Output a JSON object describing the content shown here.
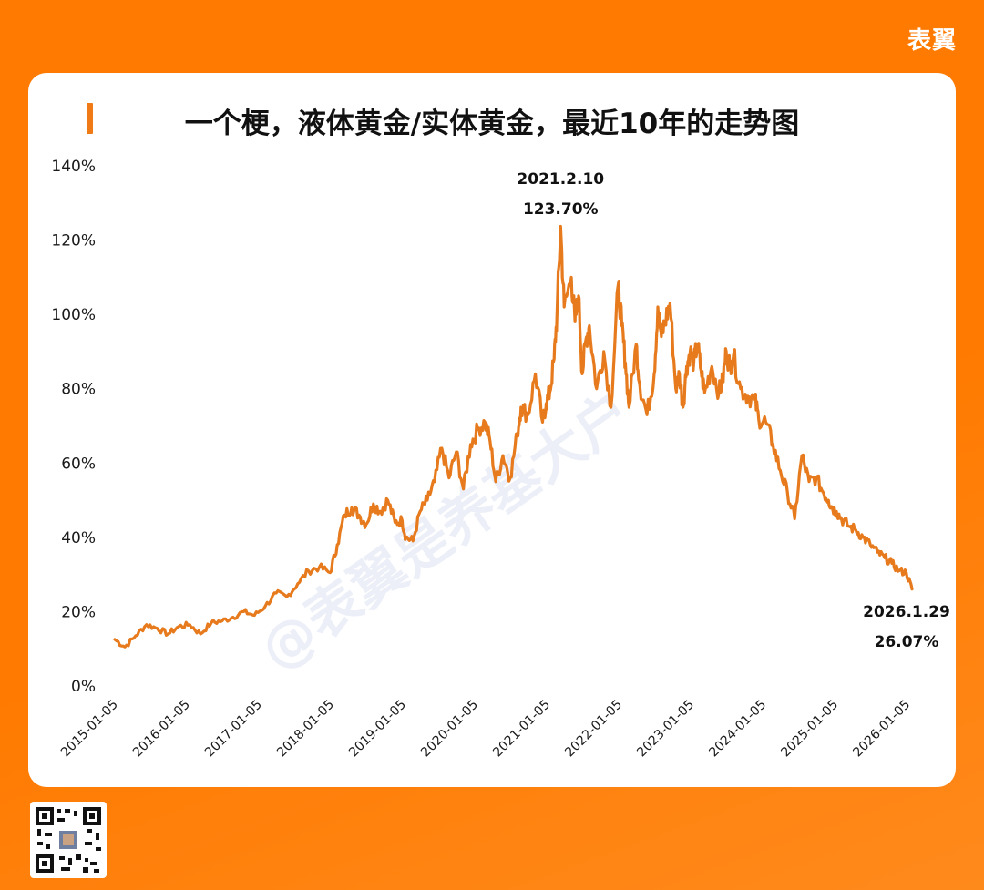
{
  "brand": "表翼",
  "card": {
    "title": "一个梗，液体黄金/实体黄金，最近10年的走势图"
  },
  "watermark": "@表翼是养基大户",
  "colors": {
    "line": "#e67a1c",
    "accent": "#f07a16",
    "background": "#ff7a00"
  },
  "chart_data": {
    "type": "line",
    "title": "一个梗，液体黄金/实体黄金，最近10年的走势图",
    "xlabel": "",
    "ylabel": "",
    "ylim": [
      0,
      140
    ],
    "yticks": [
      "0%",
      "20%",
      "40%",
      "60%",
      "80%",
      "100%",
      "120%",
      "140%"
    ],
    "x_range": [
      2015.01,
      2026.08
    ],
    "xticks": [
      "2015-01-05",
      "2016-01-05",
      "2017-01-05",
      "2018-01-05",
      "2019-01-05",
      "2020-01-05",
      "2021-01-05",
      "2022-01-05",
      "2023-01-05",
      "2024-01-05",
      "2025-01-05",
      "2026-01-05"
    ],
    "annotations": [
      {
        "date": "2021.2.10",
        "value": "123.70%"
      },
      {
        "date": "2026.1.29",
        "value": "26.07%"
      }
    ],
    "series": [
      {
        "name": "液体黄金/实体黄金",
        "x": [
          2015.01,
          2015.15,
          2015.3,
          2015.45,
          2015.6,
          2015.75,
          2015.9,
          2016.05,
          2016.2,
          2016.35,
          2016.5,
          2016.65,
          2016.8,
          2016.95,
          2017.1,
          2017.25,
          2017.4,
          2017.55,
          2017.7,
          2017.85,
          2018.0,
          2018.1,
          2018.2,
          2018.3,
          2018.4,
          2018.5,
          2018.6,
          2018.7,
          2018.8,
          2018.9,
          2019.0,
          2019.05,
          2019.15,
          2019.25,
          2019.35,
          2019.45,
          2019.55,
          2019.65,
          2019.75,
          2019.85,
          2019.95,
          2020.05,
          2020.15,
          2020.22,
          2020.3,
          2020.4,
          2020.5,
          2020.6,
          2020.65,
          2020.75,
          2020.85,
          2020.95,
          2021.0,
          2021.05,
          2021.11,
          2021.15,
          2021.2,
          2021.25,
          2021.35,
          2021.4,
          2021.45,
          2021.5,
          2021.55,
          2021.6,
          2021.7,
          2021.8,
          2021.9,
          2022.0,
          2022.05,
          2022.1,
          2022.15,
          2022.25,
          2022.3,
          2022.4,
          2022.5,
          2022.55,
          2022.6,
          2022.65,
          2022.72,
          2022.8,
          2022.85,
          2022.9,
          2022.95,
          2023.0,
          2023.05,
          2023.1,
          2023.15,
          2023.2,
          2023.3,
          2023.4,
          2023.45,
          2023.5,
          2023.55,
          2023.6,
          2023.7,
          2023.8,
          2023.9,
          2023.95,
          2024.05,
          2024.15,
          2024.25,
          2024.35,
          2024.45,
          2024.55,
          2024.65,
          2024.75,
          2024.85,
          2024.92,
          2024.97,
          2025.03,
          2025.1,
          2025.2,
          2025.3,
          2025.4,
          2025.5,
          2025.6,
          2025.7,
          2025.8,
          2025.9,
          2026.0,
          2026.08
        ],
        "values": [
          12.5,
          10.5,
          13.5,
          16.5,
          15.5,
          14.0,
          16.0,
          16.5,
          14.0,
          17.0,
          17.5,
          18.5,
          20.0,
          19.0,
          21.5,
          25.0,
          24.0,
          27.5,
          31.0,
          32.0,
          30.5,
          38.0,
          46.0,
          48.0,
          46.0,
          43.5,
          49.0,
          47.0,
          50.0,
          44.0,
          44.5,
          40.0,
          39.0,
          47.0,
          50.0,
          55.0,
          64.0,
          56.0,
          63.0,
          53.0,
          65.0,
          69.0,
          71.0,
          66.0,
          55.0,
          62.0,
          56.0,
          68.0,
          75.0,
          73.0,
          84.0,
          71.0,
          76.0,
          79.0,
          88.0,
          100.0,
          123.7,
          102.0,
          110.0,
          98.0,
          105.0,
          84.0,
          93.0,
          97.0,
          80.0,
          90.0,
          75.0,
          108.0,
          97.0,
          87.0,
          75.0,
          92.0,
          81.0,
          73.0,
          84.0,
          102.0,
          94.0,
          98.0,
          103.0,
          80.0,
          84.0,
          75.0,
          86.0,
          90.0,
          87.0,
          92.0,
          85.0,
          79.0,
          86.0,
          79.0,
          82.0,
          90.0,
          86.0,
          89.0,
          80.0,
          78.0,
          77.0,
          72.0,
          71.0,
          65.0,
          58.0,
          52.0,
          45.0,
          62.0,
          55.0,
          56.0,
          52.0,
          50.0,
          48.0,
          47.0,
          45.0,
          43.0,
          42.0,
          40.0,
          38.0,
          36.0,
          34.5,
          33.0,
          31.0,
          30.5,
          26.07
        ]
      }
    ]
  }
}
